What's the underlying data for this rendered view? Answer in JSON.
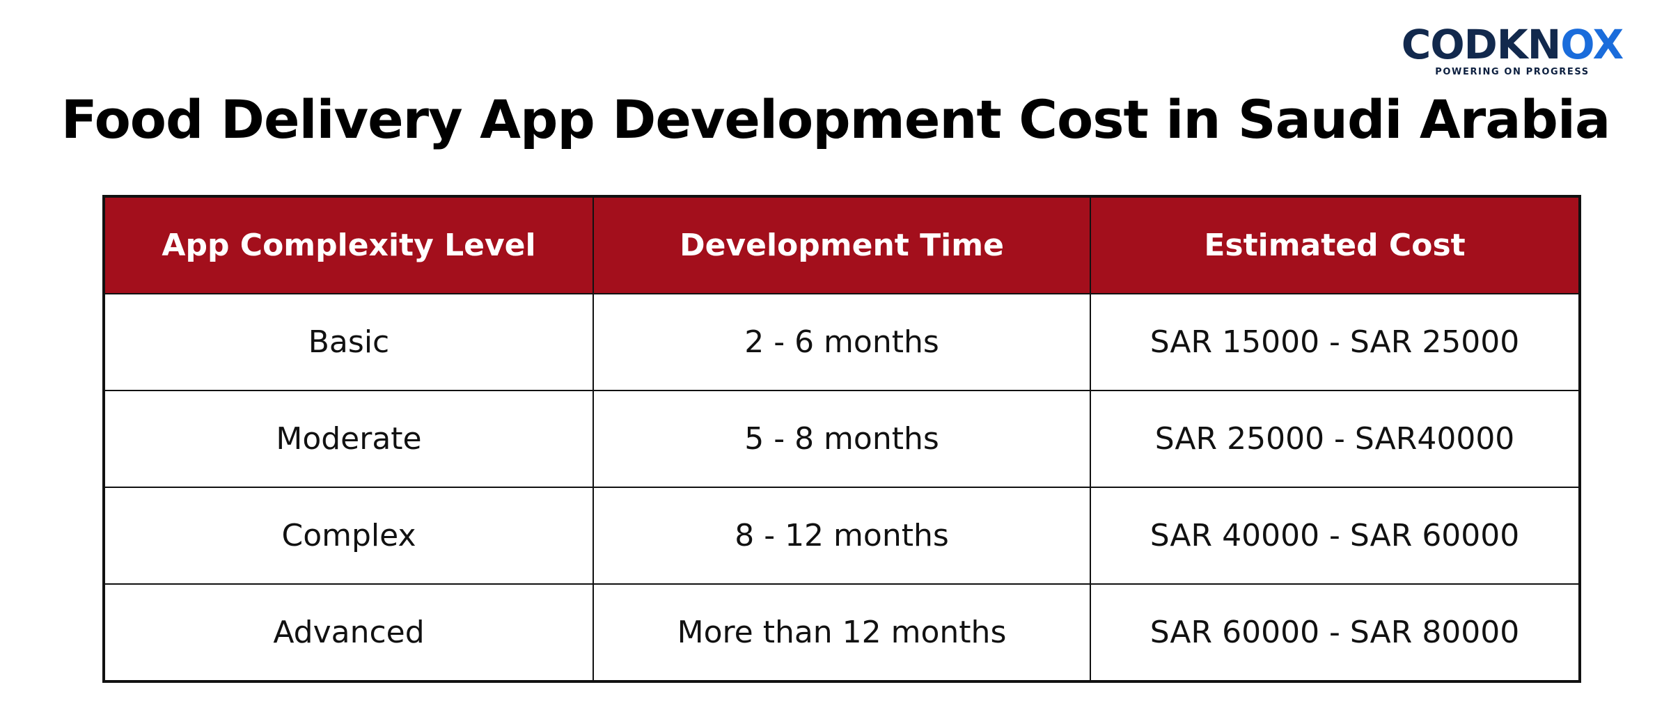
{
  "logo": {
    "word_dark": "CODKN",
    "word_blue": "OX",
    "tagline": "POWERING ON PROGRESS",
    "colors": {
      "dark": "#12294d",
      "blue": "#1a6cdb"
    }
  },
  "title": "Food Delivery App Development Cost in Saudi Arabia",
  "table": {
    "header_color": "#a30f1c",
    "headers": [
      "App Complexity Level",
      "Development Time",
      "Estimated Cost"
    ],
    "rows": [
      [
        "Basic",
        "2 - 6 months",
        "SAR 15000 - SAR 25000"
      ],
      [
        "Moderate",
        "5 - 8 months",
        "SAR 25000 - SAR40000"
      ],
      [
        "Complex",
        "8 - 12 months",
        "SAR 40000 - SAR 60000"
      ],
      [
        "Advanced",
        "More than 12 months",
        "SAR 60000 - SAR 80000"
      ]
    ]
  }
}
